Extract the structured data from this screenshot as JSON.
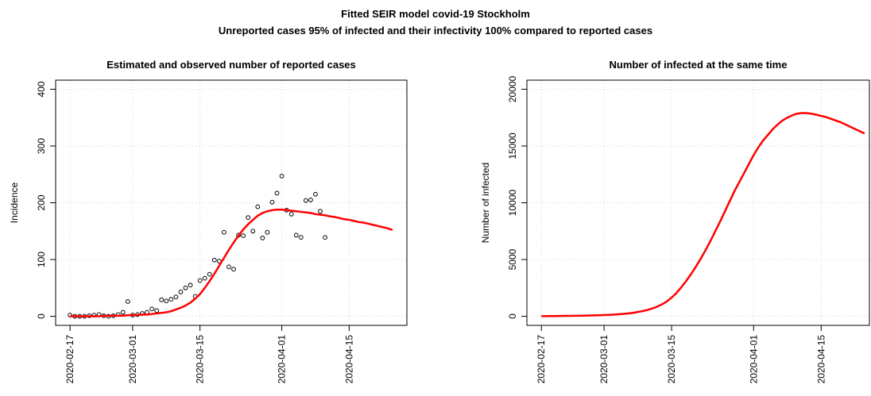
{
  "title": "Fitted SEIR model covid-19 Stockholm",
  "subtitle": "Unreported cases 95% of infected and their infectivity 100% compared to reported cases",
  "chart_data": [
    {
      "type": "line",
      "title": "Estimated and observed number of reported cases",
      "ylabel": "Incidence",
      "xlim": [
        "2020-02-14",
        "2020-04-27"
      ],
      "xticks": [
        "2020-02-17",
        "2020-03-01",
        "2020-03-15",
        "2020-04-01",
        "2020-04-15"
      ],
      "ylim": [
        -16,
        416
      ],
      "yticks": [
        0,
        100,
        200,
        300,
        400
      ],
      "grid": true,
      "series": [
        {
          "style": "points",
          "color": "#000000",
          "start": "2020-02-17",
          "values": [
            2,
            0,
            0,
            0,
            1,
            2,
            3,
            1,
            0,
            1,
            3,
            7,
            26,
            2,
            3,
            5,
            7,
            13,
            10,
            29,
            27,
            30,
            34,
            43,
            50,
            55,
            35,
            63,
            67,
            74,
            99,
            97,
            148,
            87,
            83,
            143,
            142,
            174,
            150,
            193,
            138,
            148,
            201,
            217,
            247,
            187,
            180,
            143,
            139,
            204,
            205,
            215,
            185,
            139
          ]
        },
        {
          "style": "line",
          "color": "#ff0000",
          "start": "2020-02-17",
          "values": [
            0,
            0,
            0,
            0,
            0,
            0,
            0,
            1,
            1,
            1,
            1,
            1,
            2,
            2,
            2,
            3,
            3,
            4,
            5,
            6,
            7,
            9,
            12,
            15,
            19,
            24,
            31,
            39,
            50,
            62,
            75,
            89,
            103,
            117,
            130,
            142,
            153,
            162,
            170,
            177,
            182,
            185,
            187,
            188,
            188,
            187,
            186,
            185,
            184,
            183,
            182,
            180,
            179,
            178,
            176,
            175,
            173,
            171,
            170,
            168,
            166,
            165,
            163,
            161,
            159,
            157,
            155,
            152
          ]
        }
      ]
    },
    {
      "type": "line",
      "title": "Number of infected at the same time",
      "ylabel": "Number of infected",
      "xlim": [
        "2020-02-14",
        "2020-04-25"
      ],
      "xticks": [
        "2020-02-17",
        "2020-03-01",
        "2020-03-15",
        "2020-04-01",
        "2020-04-15"
      ],
      "ylim": [
        -800,
        20800
      ],
      "yticks": [
        0,
        5000,
        10000,
        15000,
        20000
      ],
      "grid": true,
      "series": [
        {
          "style": "line",
          "color": "#ff0000",
          "start": "2020-02-17",
          "values": [
            10,
            15,
            20,
            25,
            30,
            35,
            40,
            45,
            50,
            60,
            70,
            80,
            95,
            110,
            130,
            150,
            180,
            210,
            250,
            300,
            380,
            460,
            560,
            690,
            850,
            1050,
            1300,
            1650,
            2050,
            2550,
            3100,
            3700,
            4350,
            5050,
            5800,
            6600,
            7450,
            8300,
            9200,
            10100,
            11000,
            11800,
            12600,
            13400,
            14200,
            14900,
            15500,
            16000,
            16500,
            16900,
            17250,
            17500,
            17700,
            17850,
            17900,
            17900,
            17850,
            17750,
            17650,
            17550,
            17400,
            17250,
            17100,
            16900,
            16700,
            16500,
            16300,
            16100
          ]
        }
      ]
    }
  ]
}
